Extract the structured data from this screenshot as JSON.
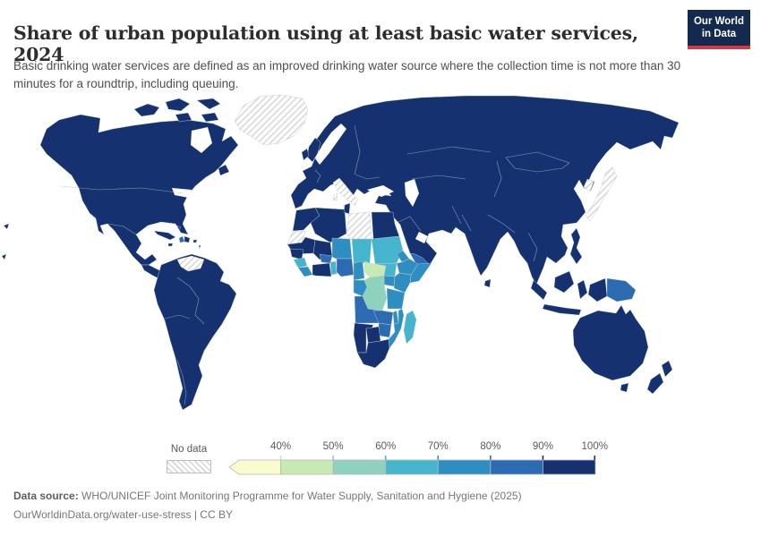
{
  "header": {
    "title": "Share of urban population using at least basic water services, 2024",
    "subtitle": "Basic drinking water services are defined as an improved drinking water source where the collection time is not more than 30 minutes for a roundtrip, including queuing.",
    "logo": {
      "line1": "Our World",
      "line2": "in Data",
      "bg_color": "#13294d",
      "accent_color": "#d8383f"
    }
  },
  "footer": {
    "source_label": "Data source:",
    "source_text": " WHO/UNICEF Joint Monitoring Programme for Water Supply, Sanitation and Hygiene (2025)",
    "link_line": "OurWorldinData.org/water-use-stress | CC BY"
  },
  "chart_data": {
    "type": "choropleth_map",
    "title": "Share of urban population using at least basic water services, 2024",
    "year": "2024",
    "unit": "%",
    "legend": {
      "no_data_label": "No data",
      "ticks": [
        "40%",
        "50%",
        "60%",
        "70%",
        "80%",
        "90%",
        "100%"
      ],
      "bins": [
        {
          "range": "<40%",
          "tick": "40%",
          "color": "#fbfccd"
        },
        {
          "range": "40-50%",
          "tick": "50%",
          "color": "#c7e9b4"
        },
        {
          "range": "50-60%",
          "tick": "60%",
          "color": "#8ed1bc"
        },
        {
          "range": "60-70%",
          "tick": "70%",
          "color": "#45b4cd"
        },
        {
          "range": "70-80%",
          "tick": "80%",
          "color": "#2e8ec2"
        },
        {
          "range": "80-90%",
          "tick": "90%",
          "color": "#2c6bb1"
        },
        {
          "range": "90-100%",
          "tick": "100%",
          "color": "#16316f"
        }
      ],
      "arrow_below_scale": true
    },
    "no_data_regions": [
      "Greenland",
      "Venezuela",
      "Italy",
      "Libya",
      "Western Sahara",
      "Japan",
      "South Korea"
    ],
    "regions": {
      "north_america": "90-100%",
      "central_america": "90-100%",
      "arctic_islands": "90-100%",
      "greenland": "no_data",
      "cuba": "90-100%",
      "haiti": "80-90%",
      "dominican_republic": "90-100%",
      "jamaica": "90-100%",
      "puerto_rico": "90-100%",
      "bahamas": "90-100%",
      "lesser_antilles": "90-100%",
      "venezuela": "no_data",
      "guyanas": "90-100%",
      "south_america": "90-100%",
      "pacific_islands": "90-100%",
      "eurasia": "90-100%",
      "uk": "90-100%",
      "ireland": "90-100%",
      "italy": "no_data",
      "japan": "no_data",
      "south_korea": "no_data",
      "yemen": "80-90%",
      "morocco": "90-100%",
      "western_sahara": "no_data",
      "algeria": "90-100%",
      "tunisia": "90-100%",
      "libya": "no_data",
      "egypt": "90-100%",
      "mauritania": "90-100%",
      "mali": "90-100%",
      "senegal": "90-100%",
      "guinea": "60-70%",
      "sierra_leone_liberia": "70-80%",
      "ivory_coast_ghana": "90-100%",
      "burkina_faso": "80-90%",
      "togo_benin": "60-70%",
      "niger": "70-80%",
      "chad": "60-70%",
      "sudan": "60-70%",
      "eritrea_djibouti": "70-80%",
      "ethiopia": "70-80%",
      "somalia": "70-80%",
      "nigeria": "80-90%",
      "cameroon": "70-80%",
      "central_african_republic": "40-50%",
      "south_sudan": "60-70%",
      "uganda": "70-80%",
      "kenya": "70-80%",
      "gabon_congo": "70-80%",
      "dr_congo": "50-60%",
      "tanzania": "70-80%",
      "angola": "80-90%",
      "zambia": "80-90%",
      "malawi": "70-80%",
      "mozambique": "70-80%",
      "zimbabwe": "80-90%",
      "namibia": "90-100%",
      "botswana": "90-100%",
      "south_africa": "90-100%",
      "madagascar": "60-70%",
      "sri_lanka": "90-100%",
      "philippines": "90-100%",
      "borneo": "90-100%",
      "sumatra": "90-100%",
      "java": "90-100%",
      "sulawesi": "90-100%",
      "west_new_guinea": "90-100%",
      "papua_new_guinea": "80-90%",
      "australia": "90-100%",
      "tasmania": "90-100%",
      "new_zealand_north": "90-100%",
      "new_zealand_south": "90-100%"
    }
  }
}
